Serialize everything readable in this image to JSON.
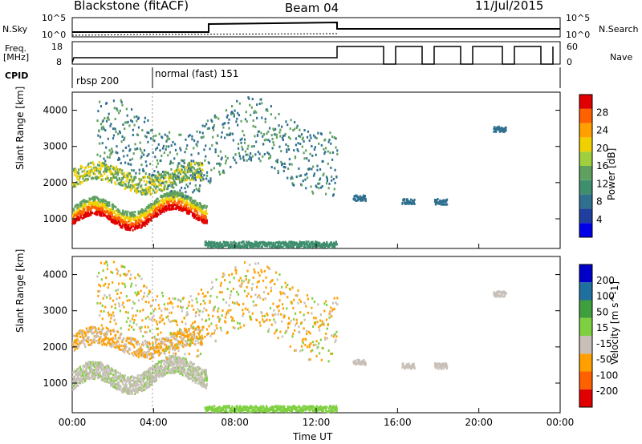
{
  "header": {
    "station": "Blackstone (fitACF)",
    "beam": "Beam 04",
    "date": "11/Jul/2015"
  },
  "side_labels": {
    "nsky": "N.Sky",
    "freq_line1": "Freq.",
    "freq_line2": "[MHz]",
    "cpid": "CPID",
    "nsearch": "N.Search",
    "nave": "Nave"
  },
  "strip_ticks": {
    "noise_left_top": "10^5",
    "noise_left_bottom": "10^0",
    "noise_right_top": "10^5",
    "noise_right_bottom": "10^0",
    "freq_left_top": "18",
    "freq_left_bottom": "8",
    "nave_right_top": "60",
    "nave_right_bottom": "0"
  },
  "cpid_labels": [
    "rbsp 200",
    "normal (fast) 151"
  ],
  "colors": {
    "power": [
      "#0000e8",
      "#1f3f9f",
      "#2f6f8f",
      "#3f8f6f",
      "#5fa05f",
      "#9fcf3f",
      "#f0d000",
      "#ffa000",
      "#ff6000",
      "#e00000"
    ],
    "velocity": [
      "#e00000",
      "#ff6000",
      "#ffa000",
      "#c8c0b8",
      "#7fd040",
      "#3f9f3f",
      "#1f6f9f",
      "#0000c8"
    ]
  },
  "chart_data": [
    {
      "type": "heatmap",
      "quantity": "power",
      "xlabel": "",
      "ylabel": "Slant Range [km]",
      "y_ticks": [
        "1000",
        "2000",
        "3000",
        "4000"
      ],
      "ylim": [
        180,
        4500
      ],
      "xlim": [
        0,
        24
      ],
      "colorbar_label": "Power [dB]",
      "colorbar_ticks": [
        "4",
        "8",
        "12",
        "16",
        "20",
        "24",
        "28"
      ]
    },
    {
      "type": "heatmap",
      "quantity": "velocity",
      "xlabel": "Time UT",
      "ylabel": "Slant Range [km]",
      "y_ticks": [
        "1000",
        "2000",
        "3000",
        "4000"
      ],
      "ylim": [
        180,
        4500
      ],
      "xlim": [
        0,
        24
      ],
      "x_ticks": [
        "00:00",
        "04:00",
        "08:00",
        "12:00",
        "16:00",
        "20:00",
        "00:00"
      ],
      "colorbar_label": "Velocity [m s^-1]",
      "colorbar_ticks": [
        "-200",
        "-100",
        "-50",
        "-15",
        "15",
        "50",
        "100",
        "200"
      ]
    }
  ]
}
